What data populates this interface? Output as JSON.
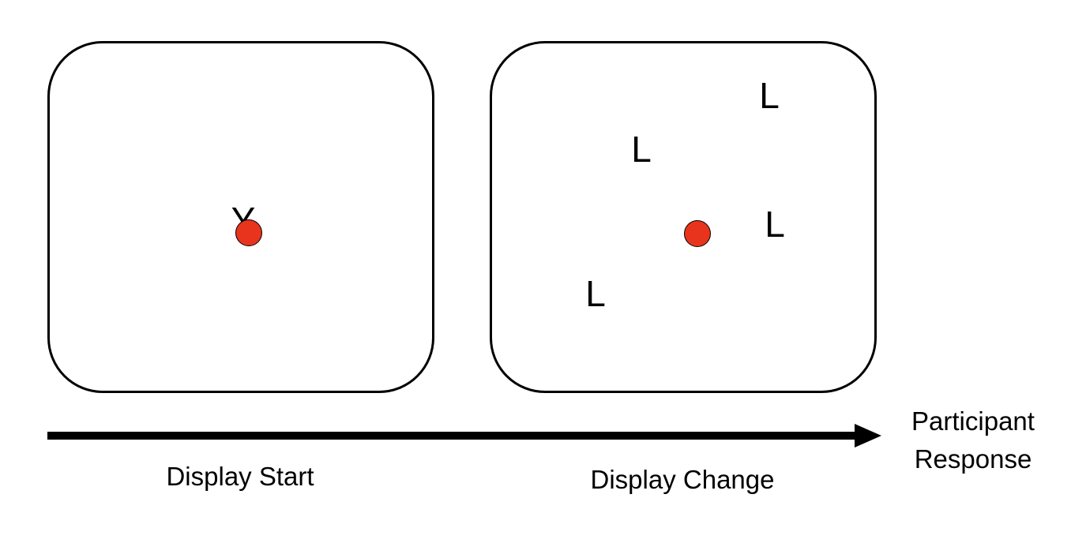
{
  "colors": {
    "fixation_dot": "#e8341c",
    "outline": "#000000"
  },
  "panels": {
    "start": {
      "letter": "Y"
    },
    "change": {
      "letters": [
        "L",
        "L",
        "L",
        "L"
      ]
    }
  },
  "captions": {
    "start": "Display Start",
    "change": "Display Change",
    "response_line1": "Participant",
    "response_line2": "Response"
  }
}
